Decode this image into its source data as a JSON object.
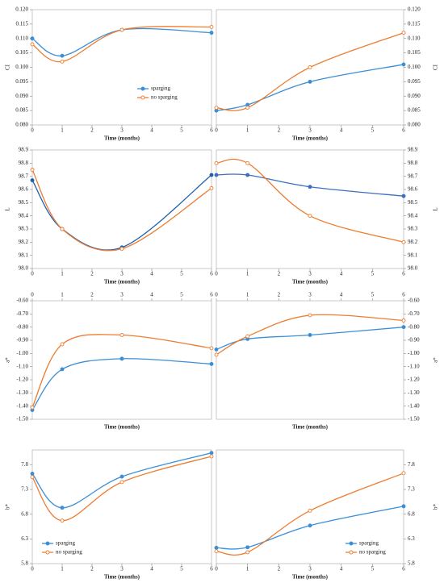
{
  "chart_data": [
    {
      "type": "line",
      "y_label": "CI",
      "x_label": "Time (months)",
      "y_axis_side": "left",
      "x_axis_position": "bottom",
      "legend": "lower right",
      "x": [
        0,
        1,
        3,
        6
      ],
      "xlim": [
        0,
        6
      ],
      "xticks": [
        0,
        1,
        2,
        3,
        4,
        5,
        6
      ],
      "ylim": [
        0.08,
        0.12
      ],
      "yticks": [
        {
          "value": 0.08,
          "label": "0.080"
        },
        {
          "value": 0.085,
          "label": "0.085"
        },
        {
          "value": 0.09,
          "label": "0.090"
        },
        {
          "value": 0.095,
          "label": "0.095"
        },
        {
          "value": 0.1,
          "label": "0.100"
        },
        {
          "value": 0.105,
          "label": "0.105"
        },
        {
          "value": 0.11,
          "label": "0.110"
        },
        {
          "value": 0.115,
          "label": "0.115"
        },
        {
          "value": 0.12,
          "label": "0.120"
        }
      ],
      "series": [
        {
          "name": "sparging",
          "color": "#3b8fd6",
          "marker": "filled",
          "values": [
            0.11,
            0.104,
            0.113,
            0.112
          ]
        },
        {
          "name": "no sparging",
          "color": "#ed7d31",
          "marker": "open",
          "values": [
            0.108,
            0.102,
            0.113,
            0.114
          ]
        }
      ]
    },
    {
      "type": "line",
      "y_label": "CI",
      "x_label": "Time (months)",
      "y_axis_side": "right",
      "x_axis_position": "bottom",
      "x": [
        0,
        1,
        3,
        6
      ],
      "xlim": [
        0,
        6
      ],
      "xticks": [
        0,
        1,
        2,
        3,
        4,
        5,
        6
      ],
      "ylim": [
        0.08,
        0.12
      ],
      "yticks": [
        {
          "value": 0.08,
          "label": "0.080"
        },
        {
          "value": 0.085,
          "label": "0.085"
        },
        {
          "value": 0.09,
          "label": "0.090"
        },
        {
          "value": 0.095,
          "label": "0.095"
        },
        {
          "value": 0.1,
          "label": "0.100"
        },
        {
          "value": 0.105,
          "label": "0.105"
        },
        {
          "value": 0.11,
          "label": "0.110"
        },
        {
          "value": 0.115,
          "label": "0.115"
        },
        {
          "value": 0.12,
          "label": "0.120"
        }
      ],
      "series": [
        {
          "color": "#3b8fd6",
          "marker": "filled",
          "values": [
            0.085,
            0.087,
            0.095,
            0.101
          ]
        },
        {
          "color": "#ed7d31",
          "marker": "open",
          "values": [
            0.086,
            0.086,
            0.1,
            0.112
          ]
        }
      ]
    },
    {
      "type": "line",
      "y_label": "L",
      "x_label": "Time (months)",
      "y_axis_side": "left",
      "x_axis_position": "bottom",
      "x": [
        0,
        1,
        3,
        6
      ],
      "xlim": [
        0,
        6
      ],
      "xticks": [
        0,
        1,
        2,
        3,
        4,
        5,
        6
      ],
      "ylim": [
        98.0,
        98.9
      ],
      "yticks": [
        {
          "value": 98.0,
          "label": "98.0"
        },
        98.1,
        98.2,
        98.3,
        98.4,
        98.5,
        98.6,
        98.7,
        98.8,
        98.9
      ],
      "series": [
        {
          "color": "#1f5fb0",
          "marker": "filled",
          "values": [
            98.67,
            98.3,
            98.16,
            98.71
          ]
        },
        {
          "color": "#ed7d31",
          "marker": "open",
          "values": [
            98.75,
            98.3,
            98.15,
            98.61
          ]
        }
      ]
    },
    {
      "type": "line",
      "y_label": "L",
      "x_label": "Time (months)",
      "y_axis_side": "right",
      "x_axis_position": "bottom",
      "x": [
        0,
        1,
        3,
        6
      ],
      "xlim": [
        0,
        6
      ],
      "xticks": [
        0,
        1,
        2,
        3,
        4,
        5,
        6
      ],
      "ylim": [
        98.0,
        98.9
      ],
      "yticks": [
        {
          "value": 98.0,
          "label": "98.0"
        },
        98.1,
        98.2,
        98.3,
        98.4,
        98.5,
        98.6,
        98.7,
        98.8,
        98.9
      ],
      "series": [
        {
          "color": "#3b6fc0",
          "marker": "filled",
          "values": [
            98.71,
            98.71,
            98.62,
            98.55
          ]
        },
        {
          "color": "#ed7d31",
          "marker": "open",
          "values": [
            98.8,
            98.8,
            98.4,
            98.2
          ]
        }
      ]
    },
    {
      "type": "line",
      "y_label": "a*",
      "x_label": "Time (months)",
      "y_axis_side": "left",
      "x_axis_position": "top",
      "x": [
        0,
        1,
        3,
        6
      ],
      "xlim": [
        0,
        6
      ],
      "xticks": [
        0,
        1,
        2,
        3,
        4,
        5,
        6
      ],
      "ylim": [
        -1.5,
        -0.6
      ],
      "yticks": [
        {
          "value": -1.5,
          "label": "-1.50"
        },
        {
          "value": -1.4,
          "label": "-1.40"
        },
        {
          "value": -1.3,
          "label": "-1.30"
        },
        {
          "value": -1.2,
          "label": "-1.20"
        },
        {
          "value": -1.1,
          "label": "-1.10"
        },
        {
          "value": -1.0,
          "label": "-1.00"
        },
        {
          "value": -0.9,
          "label": "-0.90"
        },
        {
          "value": -0.8,
          "label": "-0.80"
        },
        {
          "value": -0.7,
          "label": "-0.70"
        },
        {
          "value": -0.6,
          "label": "-0.60"
        }
      ],
      "series": [
        {
          "color": "#3b8fd6",
          "marker": "filled",
          "values": [
            -1.43,
            -1.12,
            -1.04,
            -1.08
          ]
        },
        {
          "color": "#ed7d31",
          "marker": "open",
          "values": [
            -1.41,
            -0.93,
            -0.86,
            -0.96
          ]
        }
      ]
    },
    {
      "type": "line",
      "y_label": "a*",
      "x_label": "Time (months)",
      "y_axis_side": "right",
      "x_axis_position": "top",
      "x": [
        0,
        1,
        3,
        6
      ],
      "xlim": [
        0,
        6
      ],
      "xticks": [
        0,
        1,
        2,
        3,
        4,
        5,
        6
      ],
      "ylim": [
        -1.5,
        -0.6
      ],
      "yticks": [
        {
          "value": -1.5,
          "label": "-1.50"
        },
        {
          "value": -1.4,
          "label": "-1.40"
        },
        {
          "value": -1.3,
          "label": "-1.30"
        },
        {
          "value": -1.2,
          "label": "-1.20"
        },
        {
          "value": -1.1,
          "label": "-1.10"
        },
        {
          "value": -1.0,
          "label": "-1.00"
        },
        {
          "value": -0.9,
          "label": "-0.90"
        },
        {
          "value": -0.8,
          "label": "-0.80"
        },
        {
          "value": -0.7,
          "label": "-0.70"
        },
        {
          "value": -0.6,
          "label": "-0.60"
        }
      ],
      "series": [
        {
          "color": "#3b8fd6",
          "marker": "filled",
          "values": [
            -0.97,
            -0.89,
            -0.86,
            -0.8
          ]
        },
        {
          "color": "#ed7d31",
          "marker": "open",
          "values": [
            -1.01,
            -0.87,
            -0.71,
            -0.75
          ]
        }
      ]
    },
    {
      "type": "line",
      "y_label": "b*",
      "x_label": "Time (months)",
      "y_axis_side": "left",
      "x_axis_position": "bottom",
      "legend": "lower left",
      "x": [
        0,
        1,
        3,
        6
      ],
      "xlim": [
        0,
        6
      ],
      "xticks": [
        0,
        1,
        2,
        3,
        4,
        5,
        6
      ],
      "ylim": [
        5.8,
        8.1
      ],
      "yticks": [
        5.8,
        6.3,
        6.8,
        7.3,
        7.8
      ],
      "series": [
        {
          "name": "sparging",
          "color": "#3b8fd6",
          "marker": "filled",
          "values": [
            7.62,
            6.93,
            7.56,
            8.04
          ]
        },
        {
          "name": "no sparging",
          "color": "#ed7d31",
          "marker": "open",
          "values": [
            7.55,
            6.67,
            7.45,
            7.97
          ]
        }
      ]
    },
    {
      "type": "line",
      "y_label": "b*",
      "x_label": "Time (months)",
      "y_axis_side": "right",
      "x_axis_position": "bottom",
      "legend": "lower right",
      "x": [
        0,
        1,
        3,
        6
      ],
      "xlim": [
        0,
        6
      ],
      "xticks": [
        0,
        1,
        2,
        3,
        4,
        5,
        6
      ],
      "ylim": [
        5.8,
        8.1
      ],
      "yticks": [
        5.8,
        6.3,
        6.8,
        7.3,
        7.8
      ],
      "series": [
        {
          "name": "sparging",
          "color": "#3b8fd6",
          "marker": "filled",
          "values": [
            6.12,
            6.13,
            6.57,
            6.96
          ]
        },
        {
          "name": "no sparging",
          "color": "#ed7d31",
          "marker": "open",
          "values": [
            6.05,
            6.03,
            6.87,
            7.63
          ]
        }
      ]
    }
  ]
}
